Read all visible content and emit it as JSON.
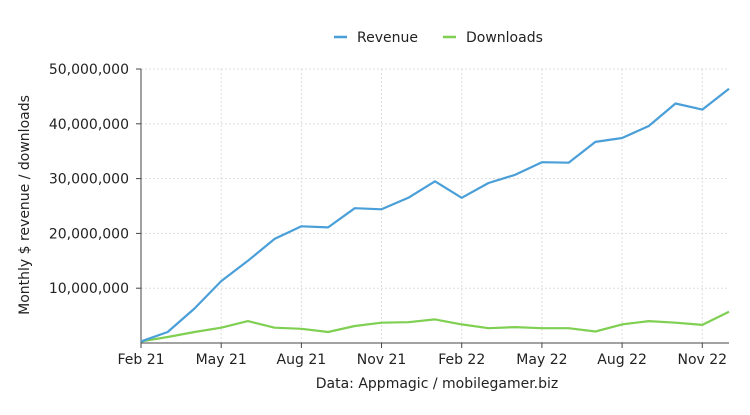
{
  "chart_data": {
    "type": "line",
    "title": "",
    "xlabel": "Data: Appmagic / mobilegamer.biz",
    "ylabel": "Monthly $ revenue / downloads",
    "x": [
      "Feb 21",
      "Mar 21",
      "Apr 21",
      "May 21",
      "Jun 21",
      "Jul 21",
      "Aug 21",
      "Sep 21",
      "Oct 21",
      "Nov 21",
      "Dec 21",
      "Jan 22",
      "Feb 22",
      "Mar 22",
      "Apr 22",
      "May 22",
      "Jun 22",
      "Jul 22",
      "Aug 22",
      "Sep 22",
      "Oct 22",
      "Nov 22",
      "Dec 22"
    ],
    "x_ticks": [
      "Feb 21",
      "May 21",
      "Aug 21",
      "Nov 21",
      "Feb 22",
      "May 22",
      "Aug 22",
      "Nov 22"
    ],
    "y_ticks": [
      "10,000,000",
      "20,000,000",
      "30,000,000",
      "40,000,000",
      "50,000,000"
    ],
    "ylim": [
      0,
      50000000
    ],
    "grid": true,
    "legend_position": "top-center",
    "series": [
      {
        "name": "Revenue",
        "color": "#4a9fd8",
        "values": [
          300000,
          2000000,
          6300000,
          11300000,
          15000000,
          19000000,
          21300000,
          21100000,
          24600000,
          24400000,
          26500000,
          29500000,
          26500000,
          29200000,
          30700000,
          33000000,
          32900000,
          36700000,
          37400000,
          39600000,
          43700000,
          42600000,
          46400000
        ]
      },
      {
        "name": "Downloads",
        "color": "#7fcf52",
        "values": [
          300000,
          1100000,
          2000000,
          2800000,
          4000000,
          2800000,
          2600000,
          2000000,
          3100000,
          3700000,
          3800000,
          4300000,
          3400000,
          2700000,
          2900000,
          2700000,
          2700000,
          2100000,
          3400000,
          4000000,
          3700000,
          3300000,
          5700000
        ]
      }
    ]
  }
}
